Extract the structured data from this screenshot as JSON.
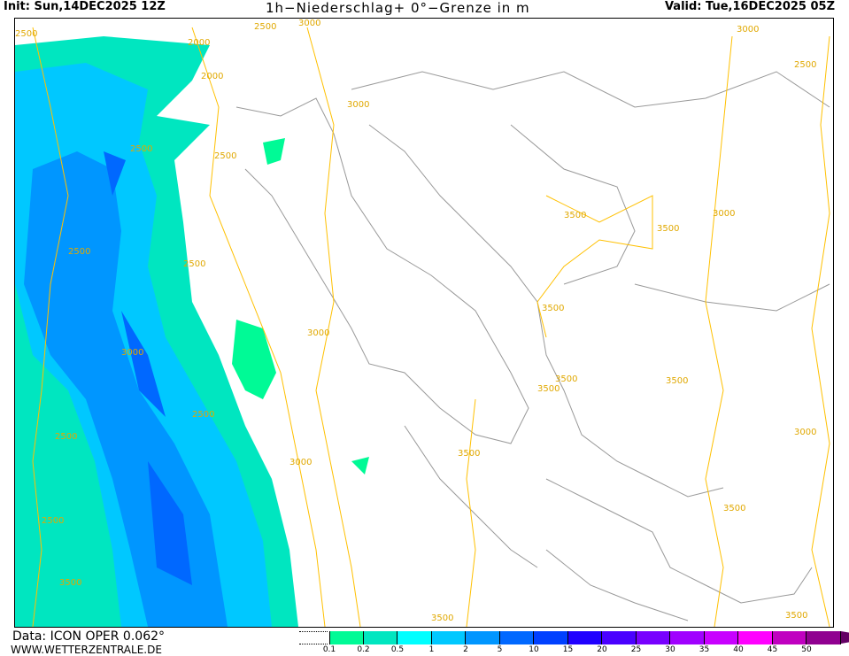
{
  "header": {
    "init": "Init: Sun,14DEC2025 12Z",
    "title": "1h−Niederschlag+ 0°−Grenze in m",
    "valid": "Valid: Tue,16DEC2025 05Z"
  },
  "footer": {
    "source": "Data: ICON OPER 0.062°",
    "site": "WWW.WETTERZENTRALE.DE"
  },
  "legend": {
    "labels": [
      "0.1",
      "0.2",
      "0.5",
      "1",
      "2",
      "5",
      "10",
      "15",
      "20",
      "25",
      "30",
      "35",
      "40",
      "45",
      "50"
    ],
    "colors": [
      "#00fa96",
      "#00e6c0",
      "#00ffff",
      "#00c8ff",
      "#0096ff",
      "#0068ff",
      "#0040ff",
      "#2000ff",
      "#4a00ff",
      "#7800ff",
      "#a000ff",
      "#c800ff",
      "#ff00ff",
      "#c000c0",
      "#900090"
    ],
    "overflow_color": "#640064"
  },
  "map": {
    "coast_color": "#999999",
    "contour_color": "#ffc000",
    "contour_labels": [
      "2500",
      "3000",
      "2000",
      "2500",
      "2000",
      "2500",
      "3000",
      "3500",
      "3000",
      "2500",
      "2500",
      "3500",
      "3500",
      "3000",
      "2500",
      "3500",
      "3000",
      "2500",
      "3000",
      "2500",
      "3500",
      "3500",
      "3500",
      "3000",
      "3500",
      "3500",
      "2500",
      "3500",
      "3500",
      "3000",
      "2500"
    ]
  }
}
